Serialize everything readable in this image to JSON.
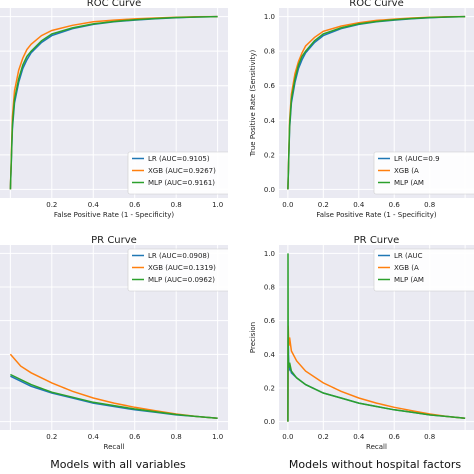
{
  "captions": {
    "left": "Models with all variables",
    "right": "Models without hospital factors"
  },
  "colors": {
    "plot_bg": "#eaeaf2",
    "grid": "#ffffff",
    "lr": "#1f77b4",
    "xgb": "#ff7f0e",
    "mlp": "#2ca02c",
    "legend_bg": "#ffffff",
    "legend_border": "#cccccc"
  },
  "chart_data": [
    {
      "type": "line",
      "title": "ROC Curve",
      "xlabel": "False Positive Rate (1 - Specificity)",
      "ylabel": "",
      "xlim": [
        -0.05,
        1.05
      ],
      "ylim": [
        -0.05,
        1.05
      ],
      "xticks": [
        0.2,
        0.4,
        0.6,
        0.8,
        1.0
      ],
      "xtick_labels": [
        "0.2",
        "0.4",
        "0.6",
        "0.8",
        "1.0"
      ],
      "yticks": [],
      "ytick_labels": [],
      "grid": true,
      "legend": "bottom-right",
      "series": [
        {
          "name": "LR (AUC=0.9105)",
          "color": "#1f77b4",
          "x": [
            0,
            0.01,
            0.02,
            0.04,
            0.06,
            0.08,
            0.1,
            0.15,
            0.2,
            0.3,
            0.4,
            0.5,
            0.6,
            0.7,
            0.8,
            0.9,
            1.0
          ],
          "y": [
            0,
            0.35,
            0.5,
            0.62,
            0.7,
            0.75,
            0.79,
            0.85,
            0.89,
            0.93,
            0.955,
            0.97,
            0.98,
            0.988,
            0.994,
            0.998,
            1.0
          ]
        },
        {
          "name": "XGB (AUC=0.9267)",
          "color": "#ff7f0e",
          "x": [
            0,
            0.01,
            0.02,
            0.04,
            0.06,
            0.08,
            0.1,
            0.15,
            0.2,
            0.3,
            0.4,
            0.5,
            0.6,
            0.7,
            0.8,
            0.9,
            1.0
          ],
          "y": [
            0,
            0.42,
            0.57,
            0.69,
            0.76,
            0.81,
            0.84,
            0.89,
            0.92,
            0.95,
            0.97,
            0.98,
            0.987,
            0.992,
            0.996,
            0.999,
            1.0
          ]
        },
        {
          "name": "MLP (AUC=0.9161)",
          "color": "#2ca02c",
          "x": [
            0,
            0.01,
            0.02,
            0.04,
            0.06,
            0.08,
            0.1,
            0.15,
            0.2,
            0.3,
            0.4,
            0.5,
            0.6,
            0.7,
            0.8,
            0.9,
            1.0
          ],
          "y": [
            0,
            0.37,
            0.52,
            0.64,
            0.72,
            0.77,
            0.8,
            0.86,
            0.9,
            0.935,
            0.958,
            0.972,
            0.982,
            0.989,
            0.995,
            0.998,
            1.0
          ]
        }
      ]
    },
    {
      "type": "line",
      "title": "ROC Curve",
      "xlabel": "False Positive Rate (1 - Specificity)",
      "ylabel": "True Positive Rate (Sensitivity)",
      "xlim": [
        -0.05,
        1.05
      ],
      "ylim": [
        -0.05,
        1.05
      ],
      "xticks": [
        0.0,
        0.2,
        0.4,
        0.6,
        0.8
      ],
      "xtick_labels": [
        "0.0",
        "0.2",
        "0.4",
        "0.6",
        "0.8"
      ],
      "yticks": [
        0.0,
        0.2,
        0.4,
        0.6,
        0.8,
        1.0
      ],
      "ytick_labels": [
        "0.0",
        "0.2",
        "0.4",
        "0.6",
        "0.8",
        "1.0"
      ],
      "grid": true,
      "legend": "bottom-right",
      "series": [
        {
          "name": "LR (AUC=0.9",
          "color": "#1f77b4",
          "x": [
            0,
            0.01,
            0.02,
            0.04,
            0.06,
            0.08,
            0.1,
            0.15,
            0.2,
            0.3,
            0.4,
            0.5,
            0.6,
            0.7,
            0.8,
            0.9,
            1.0
          ],
          "y": [
            0,
            0.35,
            0.5,
            0.62,
            0.7,
            0.75,
            0.79,
            0.85,
            0.89,
            0.93,
            0.955,
            0.97,
            0.98,
            0.988,
            0.994,
            0.998,
            1.0
          ]
        },
        {
          "name": "XGB (A",
          "color": "#ff7f0e",
          "x": [
            0,
            0.01,
            0.02,
            0.04,
            0.06,
            0.08,
            0.1,
            0.15,
            0.2,
            0.3,
            0.4,
            0.5,
            0.6,
            0.7,
            0.8,
            0.9,
            1.0
          ],
          "y": [
            0,
            0.4,
            0.55,
            0.67,
            0.74,
            0.79,
            0.83,
            0.88,
            0.915,
            0.945,
            0.965,
            0.978,
            0.986,
            0.992,
            0.996,
            0.999,
            1.0
          ]
        },
        {
          "name": "MLP (AM",
          "color": "#2ca02c",
          "x": [
            0,
            0.01,
            0.02,
            0.04,
            0.06,
            0.08,
            0.1,
            0.15,
            0.2,
            0.3,
            0.4,
            0.5,
            0.6,
            0.7,
            0.8,
            0.9,
            1.0
          ],
          "y": [
            0,
            0.37,
            0.52,
            0.64,
            0.72,
            0.77,
            0.8,
            0.86,
            0.9,
            0.935,
            0.958,
            0.972,
            0.982,
            0.989,
            0.995,
            0.998,
            1.0
          ]
        }
      ]
    },
    {
      "type": "line",
      "title": "PR Curve",
      "xlabel": "Recall",
      "ylabel": "",
      "xlim": [
        -0.05,
        1.05
      ],
      "ylim": [
        -0.05,
        1.05
      ],
      "xticks": [
        0.2,
        0.4,
        0.6,
        0.8,
        1.0
      ],
      "xtick_labels": [
        "0.2",
        "0.4",
        "0.6",
        "0.8",
        "1.0"
      ],
      "yticks": [],
      "ytick_labels": [],
      "grid": true,
      "legend": "top-right",
      "series": [
        {
          "name": "LR (AUC=0.0908)",
          "color": "#1f77b4",
          "x": [
            0,
            0.05,
            0.1,
            0.2,
            0.3,
            0.4,
            0.5,
            0.6,
            0.7,
            0.8,
            0.9,
            1.0
          ],
          "y": [
            0.27,
            0.24,
            0.21,
            0.17,
            0.14,
            0.11,
            0.09,
            0.07,
            0.055,
            0.04,
            0.03,
            0.02
          ]
        },
        {
          "name": "XGB (AUC=0.1319)",
          "color": "#ff7f0e",
          "x": [
            0,
            0.05,
            0.1,
            0.2,
            0.3,
            0.4,
            0.5,
            0.6,
            0.7,
            0.8,
            0.9,
            1.0
          ],
          "y": [
            0.4,
            0.33,
            0.29,
            0.23,
            0.18,
            0.14,
            0.11,
            0.085,
            0.065,
            0.045,
            0.03,
            0.02
          ]
        },
        {
          "name": "MLP (AUC=0.0962)",
          "color": "#2ca02c",
          "x": [
            0,
            0.05,
            0.1,
            0.2,
            0.3,
            0.4,
            0.5,
            0.6,
            0.7,
            0.8,
            0.9,
            1.0
          ],
          "y": [
            0.28,
            0.25,
            0.22,
            0.175,
            0.145,
            0.115,
            0.095,
            0.075,
            0.058,
            0.042,
            0.03,
            0.02
          ]
        }
      ]
    },
    {
      "type": "line",
      "title": "PR Curve",
      "xlabel": "Recall",
      "ylabel": "Precision",
      "xlim": [
        -0.05,
        1.05
      ],
      "ylim": [
        -0.05,
        1.05
      ],
      "xticks": [
        0.0,
        0.2,
        0.4,
        0.6,
        0.8
      ],
      "xtick_labels": [
        "0.0",
        "0.2",
        "0.4",
        "0.6",
        "0.8"
      ],
      "yticks": [
        0.0,
        0.2,
        0.4,
        0.6,
        0.8,
        1.0
      ],
      "ytick_labels": [
        "0.0",
        "0.2",
        "0.4",
        "0.6",
        "0.8",
        "1.0"
      ],
      "grid": true,
      "legend": "top-right",
      "series": [
        {
          "name": "LR (AUC",
          "color": "#1f77b4",
          "x": [
            0,
            0.002,
            0.005,
            0.01,
            0.02,
            0.05,
            0.1,
            0.2,
            0.3,
            0.4,
            0.5,
            0.6,
            0.7,
            0.8,
            0.9,
            1.0
          ],
          "y": [
            0,
            0.5,
            0.3,
            0.33,
            0.29,
            0.26,
            0.22,
            0.17,
            0.14,
            0.11,
            0.09,
            0.07,
            0.055,
            0.04,
            0.03,
            0.02
          ]
        },
        {
          "name": "XGB (A",
          "color": "#ff7f0e",
          "x": [
            0,
            0.002,
            0.005,
            0.01,
            0.02,
            0.05,
            0.1,
            0.2,
            0.3,
            0.4,
            0.5,
            0.6,
            0.7,
            0.8,
            0.9,
            1.0
          ],
          "y": [
            0,
            0.57,
            0.45,
            0.5,
            0.42,
            0.36,
            0.3,
            0.23,
            0.18,
            0.14,
            0.11,
            0.085,
            0.065,
            0.045,
            0.03,
            0.02
          ]
        },
        {
          "name": "MLP (AM",
          "color": "#2ca02c",
          "x": [
            0,
            0.001,
            0.002,
            0.005,
            0.01,
            0.02,
            0.05,
            0.1,
            0.2,
            0.3,
            0.4,
            0.5,
            0.6,
            0.7,
            0.8,
            0.9,
            1.0
          ],
          "y": [
            0,
            1.0,
            0.4,
            0.32,
            0.35,
            0.3,
            0.26,
            0.22,
            0.17,
            0.14,
            0.11,
            0.09,
            0.07,
            0.055,
            0.04,
            0.03,
            0.02
          ]
        }
      ]
    }
  ]
}
